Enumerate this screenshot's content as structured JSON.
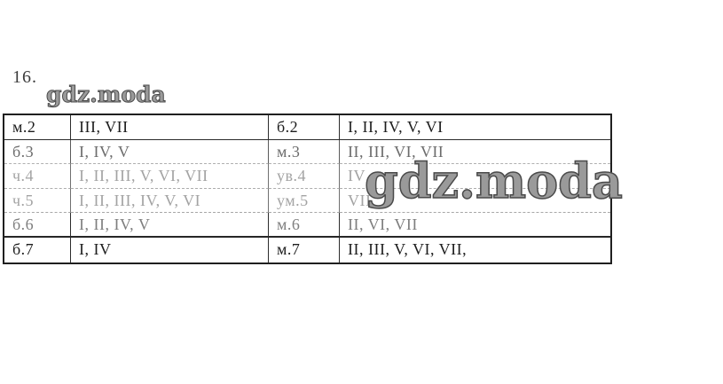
{
  "page": {
    "item_number": "16."
  },
  "watermarks": {
    "small": "gdz.moda",
    "large": "gdz.moda"
  },
  "table": {
    "rows": [
      {
        "c1": "м.2",
        "c2": "III, VII",
        "c3": "б.2",
        "c4": "I, II, IV, V, VI"
      },
      {
        "c1": "б.3",
        "c2": "I, IV, V",
        "c3": "м.3",
        "c4": "II, III, VI, VII"
      },
      {
        "c1": "ч.4",
        "c2": "I, II, III, V, VI, VII",
        "c3": "ув.4",
        "c4": "IV"
      },
      {
        "c1": "ч.5",
        "c2": "I, II, III, IV, V, VI",
        "c3": "ум.5",
        "c4": "VII"
      },
      {
        "c1": "б.6",
        "c2": "I, II, IV, V",
        "c3": "м.6",
        "c4": "II, VI, VII"
      },
      {
        "c1": "б.7",
        "c2": "I, IV",
        "c3": "м.7",
        "c4": "II, III, V, VI, VII,"
      }
    ]
  },
  "colors": {
    "ink_dark": "#1c1c1c",
    "ink_faded": "#a3a3a3",
    "watermark_gray": "#9a9a9a",
    "border_black": "#1f1f1f"
  }
}
